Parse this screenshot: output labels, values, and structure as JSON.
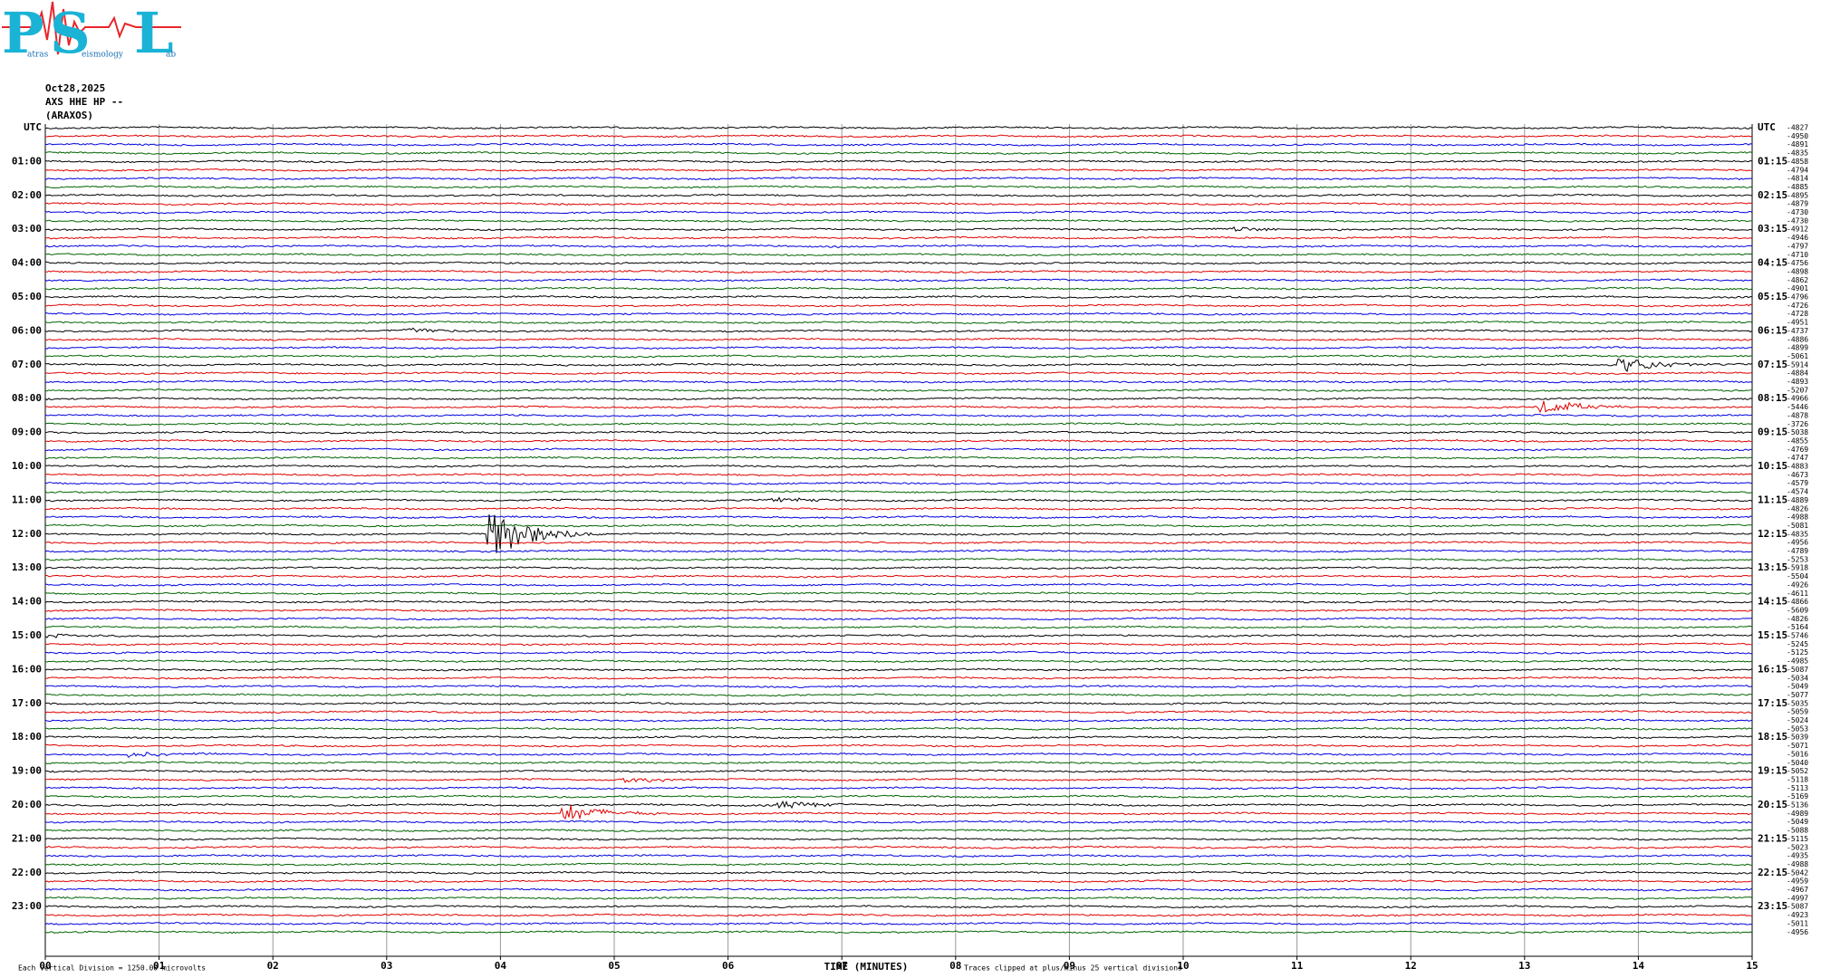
{
  "logo": {
    "letters": [
      "P",
      "S",
      "L"
    ],
    "subs": [
      "atras",
      "eismology",
      "ab"
    ]
  },
  "header": {
    "date": "Oct28,2025",
    "channel": "AXS HHE HP --",
    "station": "(ARAXOS)"
  },
  "left_labels": [
    "UTC",
    "01:00",
    "02:00",
    "03:00",
    "04:00",
    "05:00",
    "06:00",
    "07:00",
    "08:00",
    "09:00",
    "10:00",
    "11:00",
    "12:00",
    "13:00",
    "14:00",
    "15:00",
    "16:00",
    "17:00",
    "18:00",
    "19:00",
    "20:00",
    "21:00",
    "22:00",
    "23:00"
  ],
  "right_labels": [
    "UTC",
    "01:15",
    "02:15",
    "03:15",
    "04:15",
    "05:15",
    "06:15",
    "07:15",
    "08:15",
    "09:15",
    "10:15",
    "11:15",
    "12:15",
    "13:15",
    "14:15",
    "15:15",
    "16:15",
    "17:15",
    "18:15",
    "19:15",
    "20:15",
    "21:15",
    "22:15",
    "23:15"
  ],
  "offsets": [
    -4827,
    -4950,
    -4891,
    -4835,
    -4858,
    -4794,
    -4814,
    -4885,
    -4895,
    -4879,
    -4730,
    -4730,
    -4912,
    -4946,
    -4797,
    -4710,
    -4756,
    -4898,
    -4862,
    -4901,
    -4796,
    -4726,
    -4728,
    -4951,
    -4737,
    -4886,
    -4899,
    -5061,
    -5914,
    -4884,
    -4893,
    -5207,
    -4966,
    -5446,
    -4878,
    -3726,
    -5038,
    -4855,
    -4769,
    -4747,
    -4883,
    -4673,
    -4579,
    -4574,
    -4889,
    -4826,
    -4988,
    -5081,
    -4835,
    -4956,
    -4789,
    -5253,
    -5918,
    -5504,
    -4926,
    -4611,
    -4866,
    -5609,
    -4826,
    -5164,
    -5746,
    -5245,
    -5125,
    -4985,
    -5087,
    -5034,
    -5049,
    -5077,
    -5035,
    -5059,
    -5024,
    -5053,
    -5039,
    -5071,
    -5016,
    -5040,
    -5052,
    -5118,
    -5113,
    -5169,
    -5136,
    -4989,
    -5049,
    -5088,
    -5115,
    -5023,
    -4935,
    -4988,
    -5042,
    -4959,
    -4967,
    -4997,
    -5087,
    -4923,
    -5011,
    -4956
  ],
  "xticks": [
    "00",
    "01",
    "02",
    "03",
    "04",
    "05",
    "06",
    "07",
    "08",
    "09",
    "10",
    "11",
    "12",
    "13",
    "14",
    "15"
  ],
  "xlabel": "TIME (MINUTES)",
  "footer": {
    "scale": "Each Vertical Division = 1250.00 microvolts",
    "clip": "Traces clipped at plus/minus 25 vertical divisions"
  }
}
